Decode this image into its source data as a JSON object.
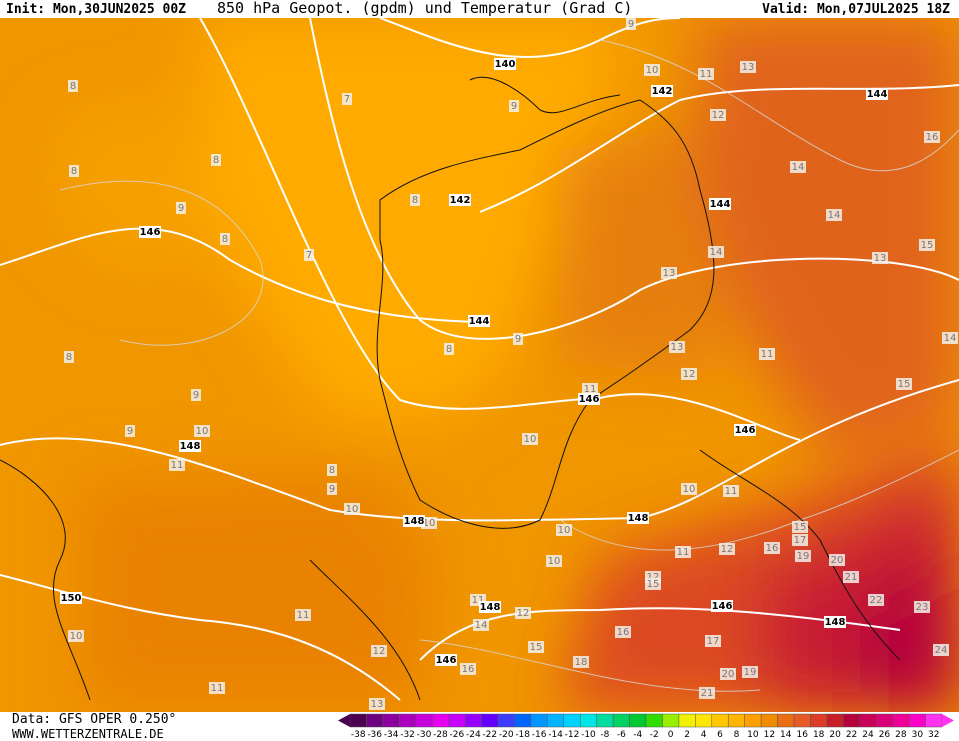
{
  "header": {
    "init": "Init: Mon,30JUN2025 00Z",
    "title": "850 hPa Geopot. (gpdm) und Temperatur (Grad C)",
    "valid": "Valid: Mon,07JUL2025 18Z"
  },
  "footer": {
    "data": "Data: GFS OPER 0.250°",
    "site": "WWW.WETTERZENTRALE.DE"
  },
  "contour_labels": {
    "geopotential": [
      140,
      142,
      142,
      144,
      144,
      144,
      146,
      146,
      146,
      148,
      148,
      148,
      148,
      150,
      146,
      148,
      146
    ],
    "temperature": [
      9,
      8,
      7,
      11,
      13,
      10,
      9,
      12,
      16,
      8,
      8,
      9,
      8,
      14,
      14,
      15,
      8,
      7,
      14,
      13,
      13,
      8,
      9,
      8,
      13,
      11,
      14,
      9,
      12,
      15,
      11,
      9,
      10,
      10,
      11,
      8,
      9,
      10,
      11,
      10,
      10,
      10,
      15,
      17,
      11,
      12,
      16,
      19,
      20,
      10,
      21,
      12,
      15,
      11,
      22,
      23,
      12,
      11,
      14,
      10,
      16,
      17,
      12,
      15,
      24,
      16,
      18,
      20,
      19,
      11,
      21,
      13
    ]
  },
  "colorbar": {
    "ticks": [
      -38,
      -36,
      -34,
      -32,
      -30,
      -28,
      -26,
      -24,
      -22,
      -20,
      -18,
      -16,
      -14,
      -12,
      -10,
      -8,
      -6,
      -4,
      -2,
      0,
      2,
      4,
      6,
      8,
      10,
      12,
      14,
      16,
      18,
      20,
      22,
      24,
      26,
      28,
      30,
      32
    ],
    "colors": [
      "#4b0050",
      "#6e0082",
      "#8c00a0",
      "#aa00be",
      "#c800dc",
      "#e600f0",
      "#c800ff",
      "#9600ff",
      "#6400ff",
      "#3c3cff",
      "#0064ff",
      "#0096ff",
      "#00b4ff",
      "#00d2ff",
      "#00e6e6",
      "#00dca0",
      "#00d264",
      "#00c832",
      "#32dc00",
      "#96f000",
      "#f0f000",
      "#ffe600",
      "#ffc800",
      "#ffb400",
      "#ffa000",
      "#f08c00",
      "#eb6e14",
      "#e65a28",
      "#dc3c28",
      "#c81e28",
      "#b4003c",
      "#c8005a",
      "#dc0078",
      "#f00096",
      "#ff00c8",
      "#ff32f0"
    ]
  }
}
